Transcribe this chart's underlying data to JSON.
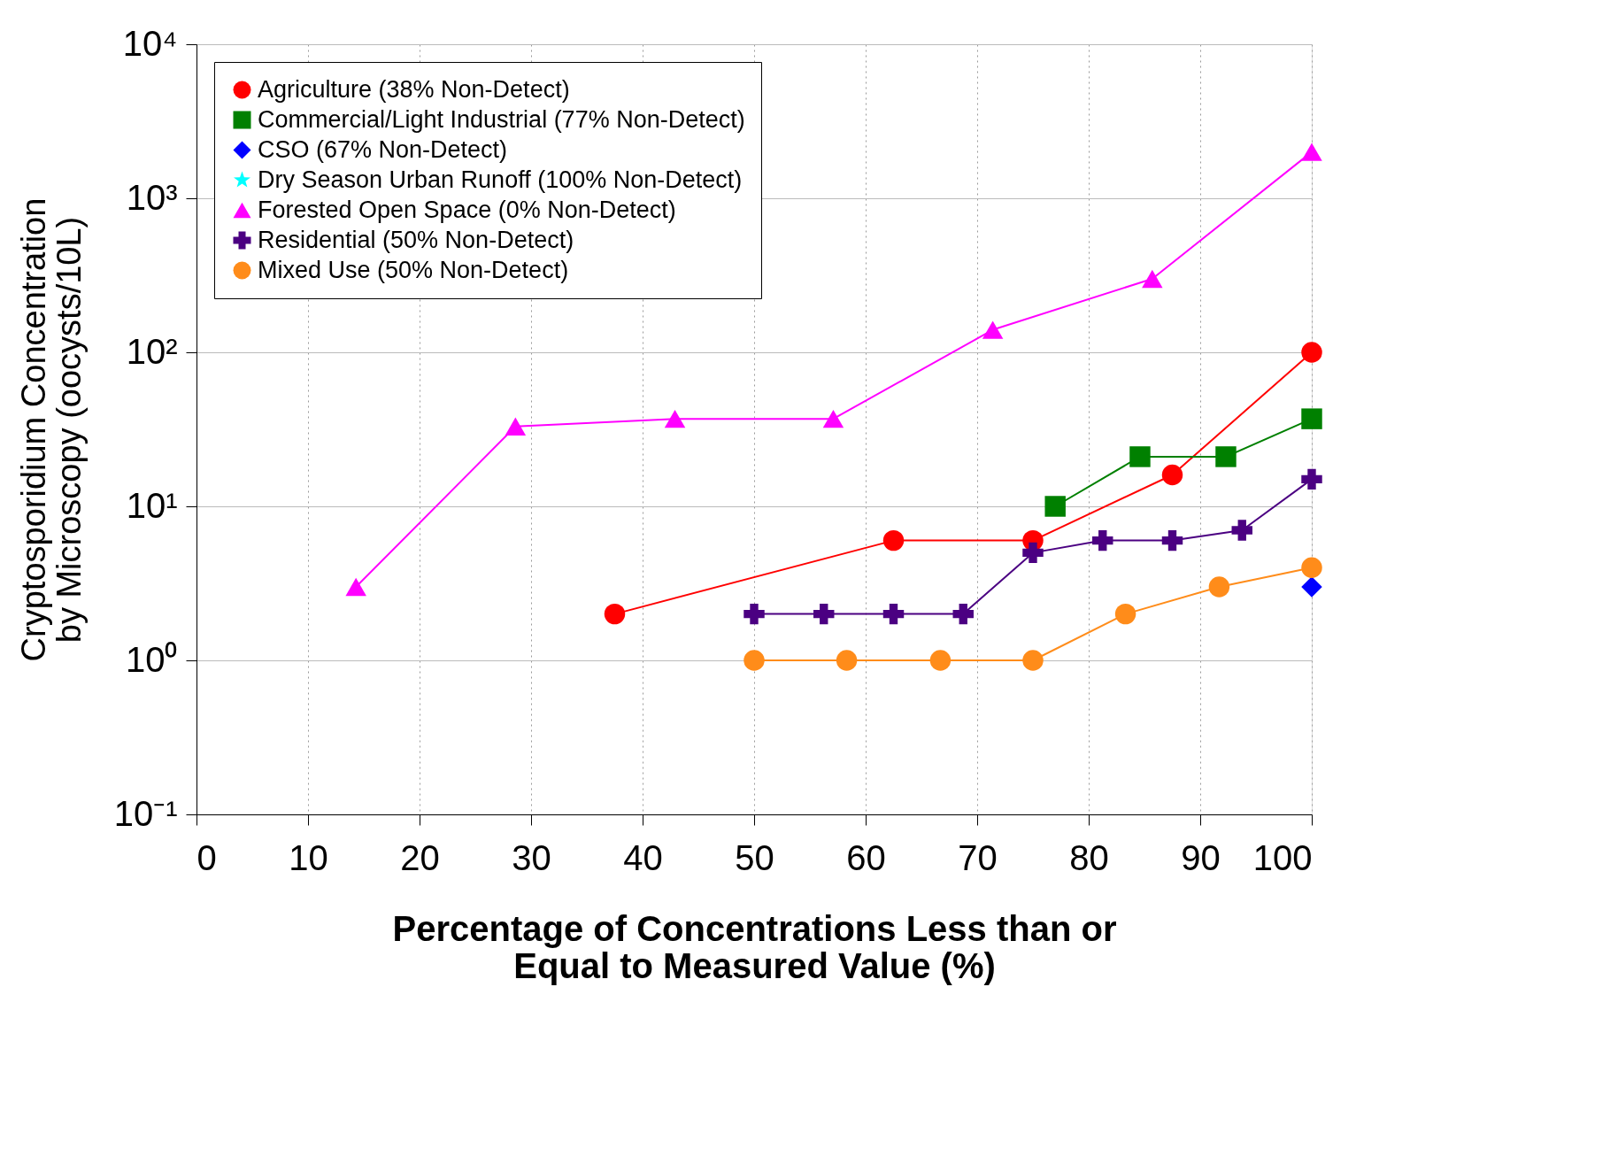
{
  "chart_data": {
    "type": "line",
    "xlabel": "Percentage of Concentrations Less than or\nEqual to Measured Value (%)",
    "ylabel": "Cryptosporidium Concentration\nby Microscopy (oocysts/10L)",
    "log": true,
    "grid": true,
    "legend": "top left",
    "xlim": [
      0,
      100
    ],
    "xticks": [
      0,
      10,
      20,
      30,
      40,
      50,
      60,
      70,
      80,
      90,
      100
    ],
    "ylim": [
      0.1,
      10000
    ],
    "yticks": [
      {
        "value": 0.1,
        "label": "10⁻¹"
      },
      {
        "value": 1,
        "label": "10⁰"
      },
      {
        "value": 10,
        "label": "10¹"
      },
      {
        "value": 100,
        "label": "10²"
      },
      {
        "value": 1000,
        "label": "10³"
      },
      {
        "value": 10000,
        "label": "10⁴"
      }
    ],
    "series": [
      {
        "name": "Agriculture (38% Non-Detect)",
        "color": "#ff0000",
        "marker": "circle",
        "x": [
          37.5,
          62.5,
          75,
          87.5,
          100
        ],
        "values": [
          2,
          6,
          6,
          16,
          100
        ]
      },
      {
        "name": "Commercial/Light Industrial (77% Non-Detect)",
        "color": "#008000",
        "marker": "square",
        "x": [
          77,
          84.6,
          92.3,
          100
        ],
        "values": [
          10,
          21,
          21,
          37
        ]
      },
      {
        "name": "CSO (67% Non-Detect)",
        "color": "#0000ff",
        "marker": "diamond",
        "x": [
          100
        ],
        "values": [
          3
        ]
      },
      {
        "name": "Dry Season Urban Runoff (100% Non-Detect)",
        "color": "#00ffff",
        "marker": "star"
      },
      {
        "name": "Forested Open Space (0% Non-Detect)",
        "color": "#ff00ff",
        "marker": "triangle",
        "x": [
          14.3,
          28.6,
          42.9,
          57.1,
          71.4,
          85.7,
          100
        ],
        "values": [
          3,
          33,
          37,
          37,
          140,
          300,
          2000
        ]
      },
      {
        "name": "Residential (50% Non-Detect)",
        "color": "#4b0082",
        "marker": "cross",
        "x": [
          50,
          56.25,
          62.5,
          68.75,
          75,
          81.25,
          87.5,
          93.75,
          100
        ],
        "values": [
          2,
          2,
          2,
          2,
          5,
          6,
          6,
          7,
          15
        ]
      },
      {
        "name": "Mixed Use (50% Non-Detect)",
        "color": "#ff8c1a",
        "marker": "circle",
        "x": [
          50,
          58.3,
          66.7,
          75,
          83.3,
          91.7,
          100
        ],
        "values": [
          1,
          1,
          1,
          1,
          2,
          3,
          4
        ]
      }
    ]
  }
}
